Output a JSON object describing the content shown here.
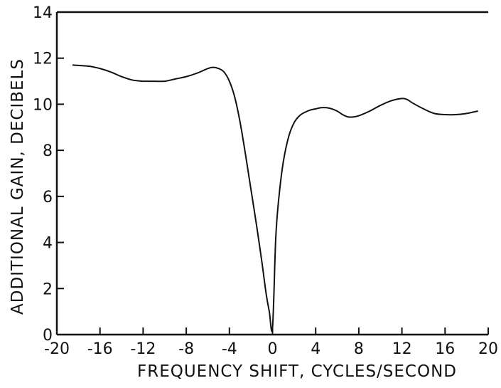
{
  "chart_data": {
    "type": "line",
    "title": "",
    "xlabel": "FREQUENCY SHIFT, CYCLES/SECOND",
    "ylabel": "ADDITIONAL GAIN, DECIBELS",
    "xlim": [
      -20,
      20
    ],
    "ylim": [
      0,
      14
    ],
    "xticks": [
      -20,
      -16,
      -12,
      -8,
      -4,
      0,
      4,
      8,
      12,
      16,
      20
    ],
    "xtick_labels": [
      "-20",
      "-16",
      "-12",
      "-8",
      "-4",
      "0",
      "4",
      "8",
      "12",
      "16",
      "20"
    ],
    "yticks": [
      0,
      2,
      4,
      6,
      8,
      10,
      12,
      14
    ],
    "ytick_labels": [
      "0",
      "2",
      "4",
      "6",
      "8",
      "10",
      "12",
      "14"
    ],
    "grid": false,
    "legend": "none",
    "colors": {
      "line": "#111111",
      "axis": "#111111",
      "background": "#ffffff"
    },
    "series": [
      {
        "x": [
          -18.5,
          -17,
          -16,
          -15,
          -14,
          -13,
          -12,
          -11,
          -10,
          -9,
          -8,
          -7,
          -6,
          -5.5,
          -5,
          -4.5,
          -4,
          -3.5,
          -3,
          -2.5,
          -2,
          -1.5,
          -1,
          -0.6,
          -0.3,
          0,
          0.3,
          0.6,
          1,
          1.5,
          2,
          2.5,
          3,
          3.5,
          4,
          4.5,
          5,
          5.5,
          6,
          6.5,
          7,
          7.5,
          8,
          9,
          10,
          11,
          12,
          12.5,
          13,
          14,
          15,
          16,
          17,
          18,
          19
        ],
        "y": [
          11.7,
          11.65,
          11.55,
          11.4,
          11.2,
          11.05,
          11.0,
          11.0,
          11.0,
          11.1,
          11.2,
          11.35,
          11.55,
          11.6,
          11.55,
          11.4,
          11.0,
          10.3,
          9.2,
          7.8,
          6.3,
          4.8,
          3.2,
          1.8,
          1.0,
          0.3,
          4.2,
          6.0,
          7.5,
          8.6,
          9.2,
          9.5,
          9.65,
          9.75,
          9.8,
          9.85,
          9.85,
          9.8,
          9.7,
          9.55,
          9.45,
          9.45,
          9.5,
          9.7,
          9.95,
          10.15,
          10.25,
          10.2,
          10.05,
          9.8,
          9.6,
          9.55,
          9.55,
          9.6,
          9.7
        ]
      }
    ]
  }
}
